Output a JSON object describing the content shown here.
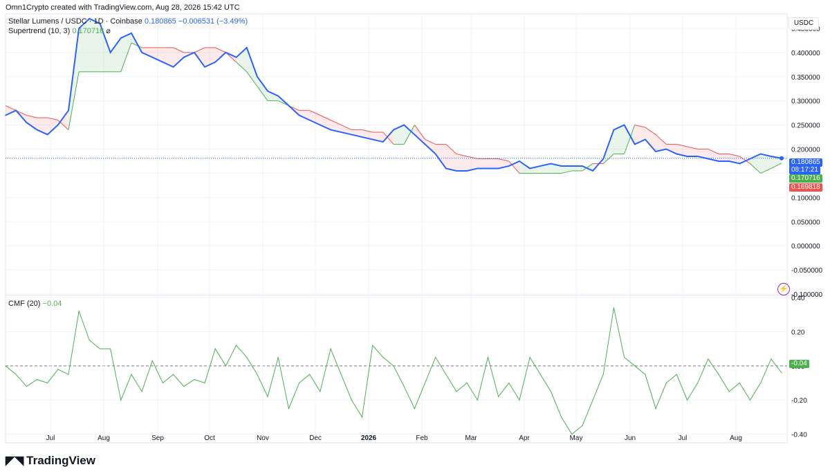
{
  "header": {
    "text": "Omn1Crypto created with TradingView.com, Aug 28, 2026 15:42 UTC"
  },
  "legend": {
    "symbol": "Stellar Lumens / USDC · 1D · Coinbase",
    "price": "0.180865",
    "change": "−0.006531 (−3.49%)",
    "supertrend_label": "Supertrend (10, 3)",
    "supertrend_value": "0.170716",
    "cmf_label": "CMF (20)",
    "cmf_value": "−0.04"
  },
  "currency": "USDC",
  "tags": {
    "price": "0.180865",
    "countdown": "08:17:21",
    "supertrend_up": "0.170716",
    "supertrend_down": "0.169818",
    "cmf": "-0.04"
  },
  "colors": {
    "price": "#2962ff",
    "up": "#4caf50",
    "down": "#ef5350",
    "cmf": "#4caf50"
  },
  "footer": {
    "brand": "TradingView"
  },
  "chart_data": {
    "type": "line",
    "price_axis": {
      "ticks": [
        "0.450000",
        "0.400000",
        "0.350000",
        "0.300000",
        "0.250000",
        "0.200000",
        "0.150000",
        "0.100000",
        "0.050000",
        "0.000000",
        "-0.050000",
        "-0.100000"
      ],
      "ylim": [
        -0.1,
        0.48
      ]
    },
    "cmf_axis": {
      "ticks": [
        "0.40",
        "0.20",
        "0.00",
        "-0.20",
        "-0.40"
      ],
      "ylim": [
        -0.45,
        0.4
      ]
    },
    "x_labels": [
      "Jul",
      "Aug",
      "Sep",
      "Oct",
      "Nov",
      "Dec",
      "2026",
      "Feb",
      "Mar",
      "Apr",
      "May",
      "Jun",
      "Jul",
      "Aug"
    ],
    "series": [
      {
        "name": "Stellar Lumens / USDC",
        "values": [
          0.27,
          0.28,
          0.255,
          0.24,
          0.23,
          0.25,
          0.28,
          0.45,
          0.47,
          0.46,
          0.4,
          0.43,
          0.44,
          0.4,
          0.39,
          0.38,
          0.37,
          0.39,
          0.4,
          0.37,
          0.38,
          0.4,
          0.39,
          0.41,
          0.35,
          0.32,
          0.31,
          0.29,
          0.27,
          0.26,
          0.25,
          0.24,
          0.235,
          0.23,
          0.225,
          0.22,
          0.215,
          0.24,
          0.25,
          0.23,
          0.21,
          0.19,
          0.16,
          0.155,
          0.155,
          0.16,
          0.16,
          0.16,
          0.165,
          0.175,
          0.16,
          0.165,
          0.17,
          0.165,
          0.165,
          0.165,
          0.155,
          0.18,
          0.24,
          0.25,
          0.21,
          0.22,
          0.195,
          0.2,
          0.19,
          0.185,
          0.185,
          0.18,
          0.175,
          0.175,
          0.17,
          0.18,
          0.19,
          0.185,
          0.181
        ]
      },
      {
        "name": "Supertrend (10, 3)",
        "values": [
          0.29,
          0.28,
          0.27,
          0.265,
          0.265,
          0.26,
          0.24,
          0.36,
          0.36,
          0.36,
          0.36,
          0.36,
          0.42,
          0.41,
          0.41,
          0.41,
          0.41,
          0.4,
          0.4,
          0.41,
          0.41,
          0.4,
          0.38,
          0.36,
          0.33,
          0.3,
          0.3,
          0.29,
          0.28,
          0.28,
          0.27,
          0.26,
          0.25,
          0.24,
          0.24,
          0.235,
          0.235,
          0.21,
          0.21,
          0.25,
          0.22,
          0.21,
          0.21,
          0.19,
          0.185,
          0.18,
          0.18,
          0.18,
          0.175,
          0.15,
          0.15,
          0.15,
          0.15,
          0.15,
          0.155,
          0.155,
          0.17,
          0.17,
          0.19,
          0.19,
          0.25,
          0.245,
          0.23,
          0.21,
          0.21,
          0.205,
          0.2,
          0.2,
          0.19,
          0.19,
          0.185,
          0.17,
          0.15,
          0.16,
          0.171
        ]
      },
      {
        "name": "CMF (20)",
        "values": [
          0.0,
          -0.05,
          -0.12,
          -0.08,
          -0.1,
          -0.02,
          -0.05,
          0.32,
          0.15,
          0.1,
          0.1,
          -0.2,
          -0.05,
          -0.15,
          0.03,
          -0.1,
          -0.05,
          -0.12,
          -0.08,
          -0.1,
          0.1,
          0.0,
          0.12,
          0.05,
          -0.05,
          -0.18,
          0.05,
          -0.25,
          -0.1,
          -0.05,
          -0.15,
          0.1,
          -0.05,
          -0.2,
          -0.3,
          0.12,
          0.05,
          0.0,
          -0.12,
          -0.25,
          -0.1,
          0.05,
          -0.05,
          -0.15,
          -0.1,
          -0.2,
          0.05,
          -0.18,
          -0.1,
          -0.2,
          0.05,
          -0.05,
          -0.15,
          -0.3,
          -0.4,
          -0.35,
          -0.2,
          -0.05,
          0.34,
          0.05,
          0.0,
          -0.05,
          -0.25,
          -0.1,
          -0.05,
          -0.2,
          -0.1,
          0.04,
          -0.05,
          -0.15,
          -0.1,
          -0.2,
          -0.1,
          0.04,
          -0.04
        ]
      }
    ]
  }
}
